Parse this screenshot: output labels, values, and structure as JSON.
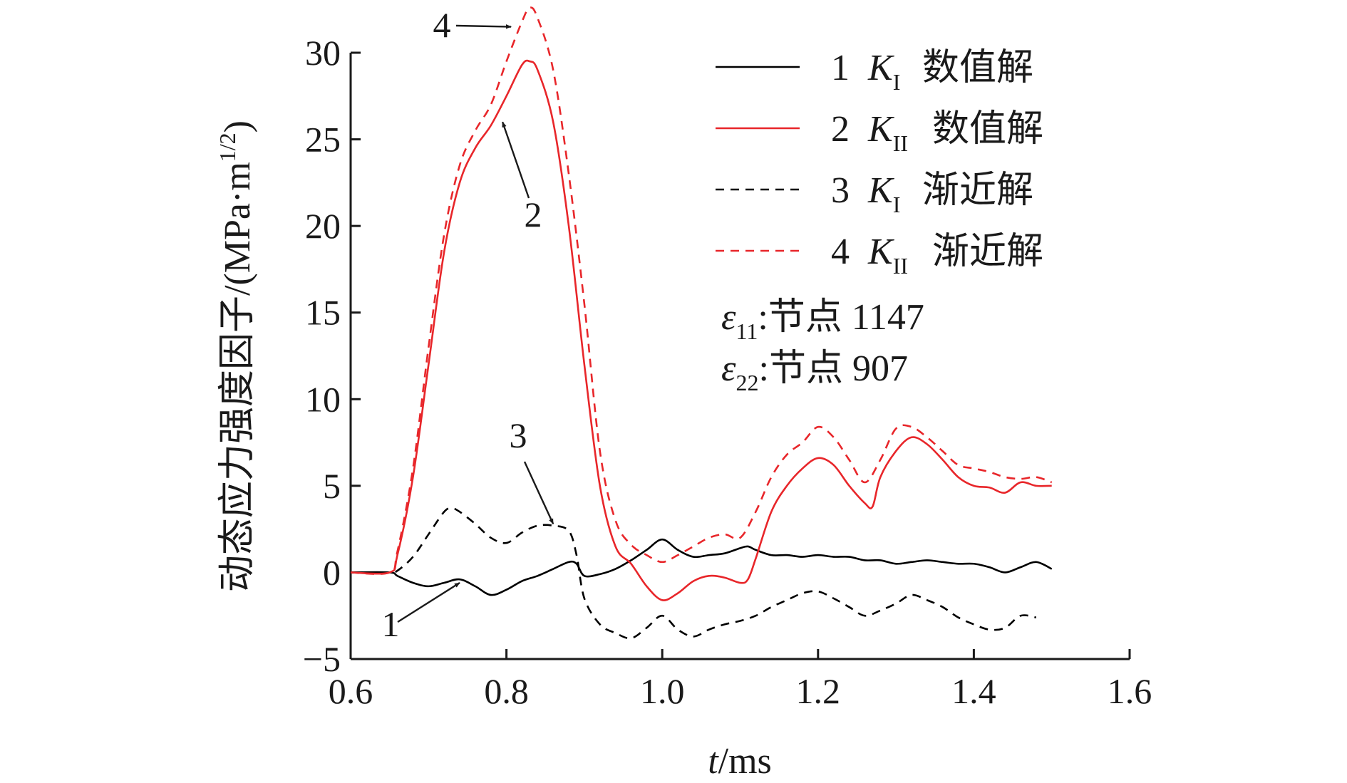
{
  "chart_data": {
    "type": "line",
    "title": "",
    "xlabel_italic": "t",
    "xlabel_rest": "/ms",
    "ylabel": "动态应力强度因子/(MPa·m",
    "ylabel_sup": "1/2",
    "ylabel_end": ")",
    "xlim": [
      0.6,
      1.6
    ],
    "ylim": [
      -5,
      30
    ],
    "xticks": [
      "0.6",
      "0.8",
      "1.0",
      "1.2",
      "1.4",
      "1.6"
    ],
    "yticks": [
      "−5",
      "0",
      "5",
      "10",
      "15",
      "20",
      "25",
      "30"
    ],
    "grid": false,
    "legend_position": "top-right",
    "series": [
      {
        "id": "1",
        "legend_number": "1",
        "symbol": "K",
        "subscript": "I",
        "name_text": "数值解",
        "color": "#000000",
        "dash": "solid",
        "x": [
          0.6,
          0.65,
          0.66,
          0.68,
          0.7,
          0.72,
          0.74,
          0.76,
          0.78,
          0.8,
          0.82,
          0.84,
          0.86,
          0.88,
          0.89,
          0.9,
          0.92,
          0.94,
          0.96,
          0.98,
          1.0,
          1.02,
          1.04,
          1.06,
          1.08,
          1.1,
          1.11,
          1.12,
          1.14,
          1.16,
          1.18,
          1.2,
          1.22,
          1.24,
          1.26,
          1.28,
          1.3,
          1.32,
          1.34,
          1.36,
          1.38,
          1.4,
          1.42,
          1.44,
          1.46,
          1.48,
          1.5
        ],
        "y": [
          0,
          0,
          -0.2,
          -0.6,
          -0.8,
          -0.6,
          -0.4,
          -0.8,
          -1.3,
          -1.0,
          -0.5,
          -0.2,
          0.2,
          0.6,
          0.5,
          -0.2,
          -0.1,
          0.2,
          0.7,
          1.3,
          1.9,
          1.3,
          0.9,
          1.0,
          1.1,
          1.4,
          1.5,
          1.3,
          1.0,
          1.0,
          0.9,
          1.0,
          0.9,
          0.9,
          0.7,
          0.7,
          0.5,
          0.6,
          0.7,
          0.6,
          0.5,
          0.5,
          0.3,
          0.0,
          0.3,
          0.6,
          0.2
        ]
      },
      {
        "id": "2",
        "legend_number": "2",
        "symbol": "K",
        "subscript": "II",
        "name_text": "数值解",
        "color": "#e8262a",
        "dash": "solid",
        "x": [
          0.6,
          0.65,
          0.66,
          0.68,
          0.7,
          0.72,
          0.74,
          0.76,
          0.78,
          0.8,
          0.82,
          0.83,
          0.84,
          0.86,
          0.88,
          0.9,
          0.92,
          0.94,
          0.96,
          0.98,
          1.0,
          1.02,
          1.04,
          1.06,
          1.08,
          1.1,
          1.11,
          1.12,
          1.14,
          1.16,
          1.18,
          1.2,
          1.22,
          1.24,
          1.26,
          1.27,
          1.28,
          1.3,
          1.32,
          1.34,
          1.36,
          1.38,
          1.4,
          1.42,
          1.44,
          1.46,
          1.48,
          1.5
        ],
        "y": [
          0,
          0,
          1.0,
          5.5,
          12.0,
          18.5,
          22.5,
          24.5,
          25.8,
          27.5,
          29.3,
          29.5,
          29.0,
          26.0,
          20.0,
          12.0,
          5.0,
          1.5,
          0.5,
          -0.8,
          -1.6,
          -1.2,
          -0.5,
          -0.2,
          -0.3,
          -0.6,
          -0.4,
          0.8,
          3.5,
          5.0,
          6.0,
          6.6,
          6.2,
          5.0,
          4.0,
          3.8,
          5.5,
          7.0,
          7.8,
          7.4,
          6.5,
          5.5,
          5.0,
          4.9,
          4.6,
          5.2,
          5.0,
          5.0
        ]
      },
      {
        "id": "3",
        "legend_number": "3",
        "symbol": "K",
        "subscript": "I",
        "name_text": "渐近解",
        "color": "#000000",
        "dash": "dashed",
        "x": [
          0.6,
          0.65,
          0.66,
          0.68,
          0.7,
          0.72,
          0.73,
          0.74,
          0.76,
          0.78,
          0.8,
          0.82,
          0.84,
          0.86,
          0.88,
          0.89,
          0.9,
          0.92,
          0.94,
          0.96,
          0.98,
          1.0,
          1.02,
          1.04,
          1.06,
          1.08,
          1.1,
          1.12,
          1.14,
          1.16,
          1.18,
          1.2,
          1.22,
          1.24,
          1.26,
          1.28,
          1.3,
          1.32,
          1.34,
          1.36,
          1.38,
          1.4,
          1.42,
          1.44,
          1.46,
          1.48
        ],
        "y": [
          0,
          0,
          0.1,
          0.9,
          2.2,
          3.5,
          3.7,
          3.5,
          2.8,
          2.0,
          1.7,
          2.3,
          2.7,
          2.7,
          2.4,
          1.0,
          -1.5,
          -3.0,
          -3.5,
          -3.8,
          -3.2,
          -2.5,
          -3.3,
          -3.7,
          -3.3,
          -3.0,
          -2.8,
          -2.5,
          -2.0,
          -1.6,
          -1.2,
          -1.1,
          -1.5,
          -2.0,
          -2.5,
          -2.2,
          -1.8,
          -1.3,
          -1.6,
          -2.0,
          -2.6,
          -3.0,
          -3.3,
          -3.2,
          -2.5,
          -2.6
        ]
      },
      {
        "id": "4",
        "legend_number": "4",
        "symbol": "K",
        "subscript": "II",
        "name_text": "渐近解",
        "color": "#e8262a",
        "dash": "dashed",
        "x": [
          0.6,
          0.65,
          0.66,
          0.68,
          0.7,
          0.72,
          0.74,
          0.76,
          0.78,
          0.8,
          0.82,
          0.83,
          0.84,
          0.86,
          0.88,
          0.9,
          0.92,
          0.94,
          0.96,
          0.98,
          1.0,
          1.02,
          1.04,
          1.06,
          1.08,
          1.1,
          1.12,
          1.14,
          1.16,
          1.18,
          1.2,
          1.22,
          1.24,
          1.26,
          1.28,
          1.3,
          1.32,
          1.34,
          1.36,
          1.38,
          1.4,
          1.42,
          1.44,
          1.46,
          1.48,
          1.5
        ],
        "y": [
          0,
          0,
          1.2,
          6.0,
          13.0,
          19.5,
          23.5,
          25.5,
          27.0,
          29.5,
          31.8,
          32.6,
          32.0,
          29.0,
          23.0,
          15.5,
          7.0,
          3.0,
          1.6,
          1.0,
          0.6,
          1.0,
          1.5,
          2.0,
          2.2,
          2.0,
          3.5,
          5.5,
          6.8,
          7.5,
          8.4,
          7.8,
          6.5,
          5.2,
          6.5,
          8.3,
          8.4,
          7.8,
          7.0,
          6.2,
          6.0,
          5.8,
          5.5,
          5.4,
          5.5,
          5.2
        ]
      }
    ],
    "callouts": [
      {
        "label": "1",
        "target": [
          0.74,
          -0.6
        ]
      },
      {
        "label": "2",
        "target": [
          0.795,
          26.0
        ]
      },
      {
        "label": "3",
        "target": [
          0.86,
          2.8
        ]
      },
      {
        "label": "4",
        "target": [
          0.806,
          31.5
        ]
      }
    ],
    "notes": [
      {
        "symbol": "ε",
        "subscript": "11",
        "text": ":节点 1147"
      },
      {
        "symbol": "ε",
        "subscript": "22",
        "text": ":节点 907"
      }
    ]
  }
}
